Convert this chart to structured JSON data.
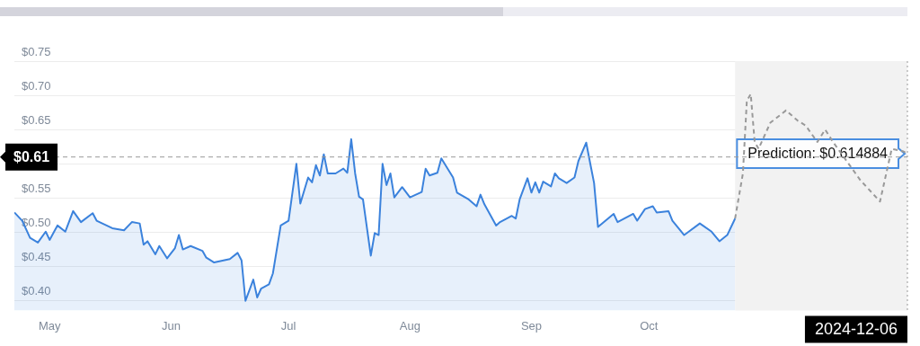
{
  "chart_data": {
    "type": "area",
    "xlim": [
      "2024-04-22",
      "2024-12-06"
    ],
    "xticks": [
      {
        "value": "2024-05-01",
        "label": "May"
      },
      {
        "value": "2024-06-01",
        "label": "Jun"
      },
      {
        "value": "2024-07-01",
        "label": "Jul"
      },
      {
        "value": "2024-08-01",
        "label": "Aug"
      },
      {
        "value": "2024-09-01",
        "label": "Sep"
      },
      {
        "value": "2024-10-01",
        "label": "Oct"
      }
    ],
    "ylim": [
      0.386,
      0.75
    ],
    "yticks": [
      {
        "value": 0.4,
        "label": "$0.40"
      },
      {
        "value": 0.45,
        "label": "$0.45"
      },
      {
        "value": 0.5,
        "label": "$0.50"
      },
      {
        "value": 0.55,
        "label": "$0.55"
      },
      {
        "value": 0.6,
        "label": null
      },
      {
        "value": 0.65,
        "label": "$0.65"
      },
      {
        "value": 0.7,
        "label": "$0.70"
      },
      {
        "value": 0.75,
        "label": "$0.75"
      }
    ],
    "grid": "y",
    "series": [
      {
        "type": "area",
        "color": "#3b82dc",
        "x": [
          "2024-04-22",
          "2024-04-24",
          "2024-04-26",
          "2024-04-28",
          "2024-04-30",
          "2024-05-01",
          "2024-05-03",
          "2024-05-05",
          "2024-05-07",
          "2024-05-09",
          "2024-05-12",
          "2024-05-13",
          "2024-05-17",
          "2024-05-20",
          "2024-05-22",
          "2024-05-24",
          "2024-05-25",
          "2024-05-26",
          "2024-05-28",
          "2024-05-29",
          "2024-05-31",
          "2024-06-02",
          "2024-06-03",
          "2024-06-04",
          "2024-06-06",
          "2024-06-09",
          "2024-06-10",
          "2024-06-12",
          "2024-06-16",
          "2024-06-18",
          "2024-06-19",
          "2024-06-20",
          "2024-06-22",
          "2024-06-23",
          "2024-06-24",
          "2024-06-26",
          "2024-06-27",
          "2024-06-29",
          "2024-07-01",
          "2024-07-03",
          "2024-07-04",
          "2024-07-06",
          "2024-07-07",
          "2024-07-08",
          "2024-07-09",
          "2024-07-10",
          "2024-07-11",
          "2024-07-13",
          "2024-07-15",
          "2024-07-16",
          "2024-07-17",
          "2024-07-18",
          "2024-07-19",
          "2024-07-20",
          "2024-07-22",
          "2024-07-23",
          "2024-07-24",
          "2024-07-25",
          "2024-07-26",
          "2024-07-27",
          "2024-07-28",
          "2024-07-30",
          "2024-08-01",
          "2024-08-04",
          "2024-08-05",
          "2024-08-06",
          "2024-08-08",
          "2024-08-09",
          "2024-08-12",
          "2024-08-13",
          "2024-08-16",
          "2024-08-18",
          "2024-08-19",
          "2024-08-20",
          "2024-08-23",
          "2024-08-24",
          "2024-08-27",
          "2024-08-28",
          "2024-08-29",
          "2024-08-31",
          "2024-09-01",
          "2024-09-02",
          "2024-09-03",
          "2024-09-04",
          "2024-09-06",
          "2024-09-07",
          "2024-09-08",
          "2024-09-10",
          "2024-09-12",
          "2024-09-13",
          "2024-09-15",
          "2024-09-16",
          "2024-09-17",
          "2024-09-18",
          "2024-09-22",
          "2024-09-23",
          "2024-09-27",
          "2024-09-28",
          "2024-09-30",
          "2024-10-02",
          "2024-10-03",
          "2024-10-06",
          "2024-10-07",
          "2024-10-10",
          "2024-10-14",
          "2024-10-17",
          "2024-10-19",
          "2024-10-21",
          "2024-10-23"
        ],
        "values": [
          0.529,
          0.517,
          0.492,
          0.485,
          0.501,
          0.489,
          0.51,
          0.501,
          0.531,
          0.515,
          0.528,
          0.517,
          0.506,
          0.503,
          0.515,
          0.513,
          0.482,
          0.487,
          0.468,
          0.48,
          0.462,
          0.477,
          0.496,
          0.475,
          0.48,
          0.473,
          0.463,
          0.456,
          0.461,
          0.47,
          0.459,
          0.4,
          0.431,
          0.405,
          0.418,
          0.424,
          0.44,
          0.51,
          0.517,
          0.6,
          0.542,
          0.58,
          0.573,
          0.598,
          0.583,
          0.614,
          0.586,
          0.586,
          0.593,
          0.587,
          0.636,
          0.586,
          0.552,
          0.548,
          0.466,
          0.499,
          0.496,
          0.6,
          0.569,
          0.586,
          0.551,
          0.566,
          0.551,
          0.559,
          0.593,
          0.583,
          0.587,
          0.608,
          0.58,
          0.558,
          0.548,
          0.538,
          0.555,
          0.541,
          0.51,
          0.515,
          0.524,
          0.52,
          0.548,
          0.579,
          0.558,
          0.573,
          0.558,
          0.574,
          0.567,
          0.586,
          0.579,
          0.572,
          0.58,
          0.604,
          0.631,
          0.601,
          0.572,
          0.508,
          0.527,
          0.515,
          0.527,
          0.517,
          0.534,
          0.538,
          0.529,
          0.531,
          0.517,
          0.496,
          0.513,
          0.501,
          0.487,
          0.496,
          0.52
        ]
      },
      {
        "type": "line",
        "color": "#999999",
        "line_style": "dashed",
        "x": [
          "2024-10-23",
          "2024-10-25",
          "2024-10-26",
          "2024-10-27",
          "2024-10-28",
          "2024-10-29",
          "2024-11-01",
          "2024-11-05",
          "2024-11-08",
          "2024-11-10",
          "2024-11-13",
          "2024-11-15",
          "2024-11-17",
          "2024-11-20",
          "2024-11-24",
          "2024-11-29",
          "2024-12-02",
          "2024-12-05",
          "2024-12-06"
        ],
        "values": [
          0.52,
          0.586,
          0.692,
          0.702,
          0.632,
          0.622,
          0.66,
          0.678,
          0.663,
          0.656,
          0.632,
          0.65,
          0.632,
          0.608,
          0.576,
          0.545,
          0.622,
          0.618,
          0.615
        ]
      }
    ],
    "bands": [
      {
        "axis": "x",
        "from": "2024-10-23",
        "to": "2024-12-06",
        "color": "#f2f2f2"
      }
    ],
    "ref_lines": [
      {
        "axis": "y",
        "value": 0.61,
        "label": "$0.61",
        "line_style": "dashed"
      },
      {
        "axis": "x",
        "value": "2024-12-06",
        "label": "2024-12-06",
        "line_style": "dotted"
      }
    ],
    "annotations": [
      {
        "text": "Prediction: $0.614884",
        "x": "2024-12-06",
        "y": 0.614884
      }
    ]
  }
}
